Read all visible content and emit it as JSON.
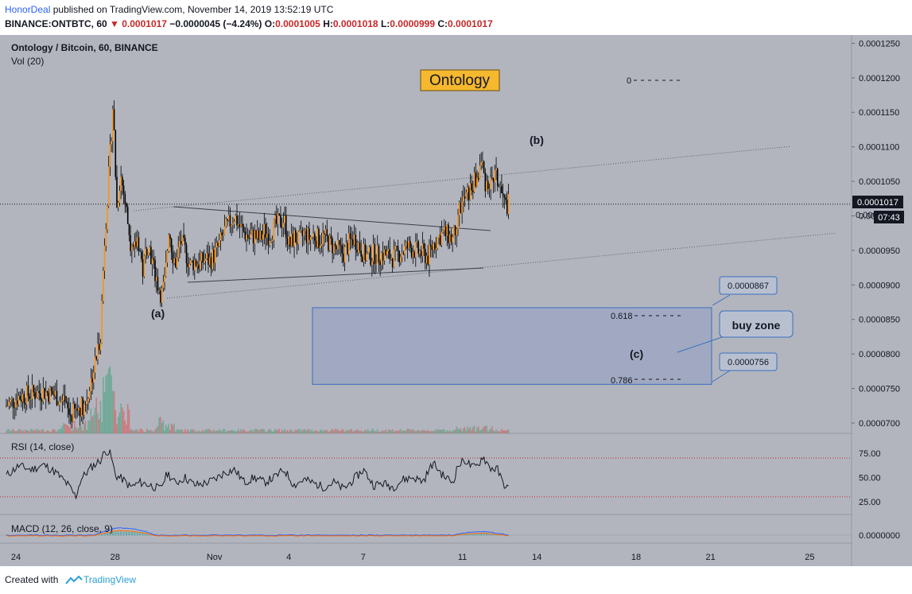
{
  "header": {
    "author": "HonorDeal",
    "published": "published on TradingView.com, November 14, 2019 13:52:19 UTC",
    "symbol": "BINANCE:ONTBTC, 60",
    "last": "0.0001017",
    "change": "−0.0000045 (−4.24%)",
    "o_label": "O:",
    "o_value": "0.0001005",
    "h_label": "H:",
    "h_value": "0.0001018",
    "l_label": "L:",
    "l_value": "0.0000999",
    "c_label": "C:",
    "c_value": "0.0001017"
  },
  "footer": {
    "created": "Created with",
    "brand": "TradingView"
  },
  "chart_data": {
    "type": "candlestick",
    "pair_label": "Ontology / Bitcoin, 60, BINANCE",
    "volume_label": "Vol (20)",
    "title_box": "Ontology",
    "y_ticks": [
      "0.0001250",
      "0.0001200",
      "0.0001150",
      "0.0001100",
      "0.0001050",
      "0.0001000",
      "0.0000950",
      "0.0000900",
      "0.0000850",
      "0.0000800",
      "0.0000750",
      "0.0000700"
    ],
    "ylim": [
      6.85e-05,
      0.0001262
    ],
    "x_ticks": [
      "24",
      "28",
      "Nov",
      "4",
      "7",
      "11",
      "14",
      "18",
      "21",
      "25"
    ],
    "x_ticks_day": [
      0,
      4,
      8,
      11,
      14,
      18,
      21,
      25,
      28,
      32
    ],
    "date_axis_start": "Oct 24",
    "price_path": [
      [
        0,
        7.25e-05
      ],
      [
        0.5,
        7.38e-05
      ],
      [
        1.0,
        7.42e-05
      ],
      [
        1.5,
        7.46e-05
      ],
      [
        2.0,
        7.4e-05
      ],
      [
        2.3,
        7.26e-05
      ],
      [
        2.6,
        7.1e-05
      ],
      [
        2.9,
        7.22e-05
      ],
      [
        3.2,
        7.28e-05
      ],
      [
        3.4,
        7.6e-05
      ],
      [
        3.6,
        7.9e-05
      ],
      [
        3.8,
        8.3e-05
      ],
      [
        3.95,
        9.6e-05
      ],
      [
        4.05,
        0.0001015
      ],
      [
        4.2,
        0.00011
      ],
      [
        4.3,
        0.0001165
      ],
      [
        4.45,
        0.000101
      ],
      [
        4.6,
        0.000106
      ],
      [
        4.75,
        0.000103
      ],
      [
        4.9,
        9.9e-05
      ],
      [
        5.1,
        9.4e-05
      ],
      [
        5.3,
        9.7e-05
      ],
      [
        5.5,
        9.2e-05
      ],
      [
        5.7,
        9.65e-05
      ],
      [
        5.9,
        9.3e-05
      ],
      [
        6.1,
        9.02e-05
      ],
      [
        6.25,
        8.85e-05
      ],
      [
        6.4,
        9.05e-05
      ],
      [
        6.55,
        9.85e-05
      ],
      [
        6.7,
        9.45e-05
      ],
      [
        6.85,
        9.3e-05
      ],
      [
        7.0,
        9.65e-05
      ],
      [
        7.2,
        9.5e-05
      ],
      [
        7.4,
        9.28e-05
      ],
      [
        7.6,
        9.35e-05
      ],
      [
        7.8,
        9.3e-05
      ],
      [
        8.0,
        9.38e-05
      ],
      [
        8.2,
        9.35e-05
      ],
      [
        8.4,
        9.45e-05
      ],
      [
        8.6,
        9.6e-05
      ],
      [
        8.8,
        9.78e-05
      ],
      [
        9.0,
        9.9e-05
      ],
      [
        9.2,
        0.0001
      ],
      [
        9.4,
        9.85e-05
      ],
      [
        9.6,
        9.75e-05
      ],
      [
        9.8,
        9.68e-05
      ],
      [
        10.0,
        9.72e-05
      ],
      [
        10.2,
        9.65e-05
      ],
      [
        10.4,
        9.78e-05
      ],
      [
        10.6,
        9.72e-05
      ],
      [
        10.8,
        9.85e-05
      ],
      [
        11.0,
        9.9e-05
      ],
      [
        11.2,
        9.95e-05
      ],
      [
        11.4,
        9.55e-05
      ],
      [
        11.6,
        9.7e-05
      ],
      [
        11.8,
        9.62e-05
      ],
      [
        12.0,
        9.75e-05
      ],
      [
        12.2,
        9.68e-05
      ],
      [
        12.4,
        9.72e-05
      ],
      [
        12.6,
        9.65e-05
      ],
      [
        12.8,
        9.7e-05
      ],
      [
        13.0,
        9.62e-05
      ],
      [
        13.2,
        9.55e-05
      ],
      [
        13.4,
        9.5e-05
      ],
      [
        13.6,
        9.45e-05
      ],
      [
        13.8,
        9.6e-05
      ],
      [
        14.0,
        9.68e-05
      ],
      [
        14.2,
        9.58e-05
      ],
      [
        14.4,
        9.45e-05
      ],
      [
        14.6,
        9.4e-05
      ],
      [
        14.8,
        9.45e-05
      ],
      [
        15.0,
        9.42e-05
      ],
      [
        15.2,
        9.45e-05
      ],
      [
        15.4,
        9.42e-05
      ],
      [
        15.6,
        9.4e-05
      ],
      [
        15.8,
        9.45e-05
      ],
      [
        16.0,
        9.5e-05
      ],
      [
        16.2,
        9.55e-05
      ],
      [
        16.4,
        9.52e-05
      ],
      [
        16.6,
        9.48e-05
      ],
      [
        16.8,
        9.45e-05
      ],
      [
        17.0,
        9.4e-05
      ],
      [
        17.2,
        9.58e-05
      ],
      [
        17.4,
        9.68e-05
      ],
      [
        17.6,
        9.75e-05
      ],
      [
        17.8,
        9.72e-05
      ],
      [
        18.0,
        9.65e-05
      ],
      [
        18.2,
        0.0001005
      ],
      [
        18.4,
        0.000102
      ],
      [
        18.6,
        0.000103
      ],
      [
        18.8,
        0.0001045
      ],
      [
        19.0,
        0.0001055
      ],
      [
        19.15,
        0.000108
      ],
      [
        19.3,
        0.000105
      ],
      [
        19.5,
        0.0001045
      ],
      [
        19.7,
        0.000106
      ],
      [
        19.9,
        0.000104
      ],
      [
        20.1,
        0.0001015
      ],
      [
        20.25,
        0.0001017
      ]
    ],
    "annotations": {
      "label_a": "(a)",
      "label_b": "(b)",
      "label_c": "(c)",
      "fib_0": "0",
      "fib_618": "0.618",
      "fib_786": "0.786",
      "callout_top": "0.0000867",
      "callout_bottom": "0.0000756",
      "buy_zone": "buy zone",
      "buy_zone_range": [
        7.56e-05,
        8.67e-05
      ],
      "fib_0_value": 0.00012
    },
    "last_price_label": "0.0001017",
    "last_price_partial": "0.0001",
    "countdown": "07:43",
    "rsi": {
      "label": "RSI (14, close)",
      "ticks": [
        "75.00",
        "50.00",
        "25.00"
      ],
      "tick_values": [
        75,
        50,
        25
      ],
      "upper": 70,
      "lower": 30,
      "ylim": [
        16,
        88
      ],
      "values": [
        [
          0,
          52
        ],
        [
          0.5,
          62
        ],
        [
          1,
          58
        ],
        [
          1.5,
          63
        ],
        [
          2,
          55
        ],
        [
          2.5,
          42
        ],
        [
          2.8,
          30
        ],
        [
          3.0,
          48
        ],
        [
          3.4,
          60
        ],
        [
          3.8,
          68
        ],
        [
          4.0,
          78
        ],
        [
          4.2,
          74
        ],
        [
          4.4,
          52
        ],
        [
          4.7,
          48
        ],
        [
          5.0,
          40
        ],
        [
          5.4,
          45
        ],
        [
          5.8,
          42
        ],
        [
          6.2,
          38
        ],
        [
          6.5,
          55
        ],
        [
          6.8,
          44
        ],
        [
          7.2,
          50
        ],
        [
          7.6,
          42
        ],
        [
          8.0,
          44
        ],
        [
          8.4,
          48
        ],
        [
          8.8,
          55
        ],
        [
          9.2,
          58
        ],
        [
          9.6,
          45
        ],
        [
          10.0,
          50
        ],
        [
          10.4,
          45
        ],
        [
          10.8,
          50
        ],
        [
          11.2,
          58
        ],
        [
          11.6,
          42
        ],
        [
          12.0,
          48
        ],
        [
          12.4,
          44
        ],
        [
          12.8,
          40
        ],
        [
          13.2,
          45
        ],
        [
          13.6,
          38
        ],
        [
          14.0,
          48
        ],
        [
          14.4,
          58
        ],
        [
          14.8,
          42
        ],
        [
          15.2,
          44
        ],
        [
          15.6,
          40
        ],
        [
          16.0,
          48
        ],
        [
          16.4,
          50
        ],
        [
          16.8,
          46
        ],
        [
          17.2,
          65
        ],
        [
          17.6,
          52
        ],
        [
          18.0,
          45
        ],
        [
          18.2,
          62
        ],
        [
          18.5,
          68
        ],
        [
          18.8,
          60
        ],
        [
          19.0,
          62
        ],
        [
          19.2,
          72
        ],
        [
          19.5,
          60
        ],
        [
          19.8,
          58
        ],
        [
          20.0,
          45
        ],
        [
          20.25,
          38
        ]
      ]
    },
    "macd": {
      "label": "MACD (12, 26, close, 9)",
      "ticks": [
        "0.0000000"
      ]
    }
  }
}
